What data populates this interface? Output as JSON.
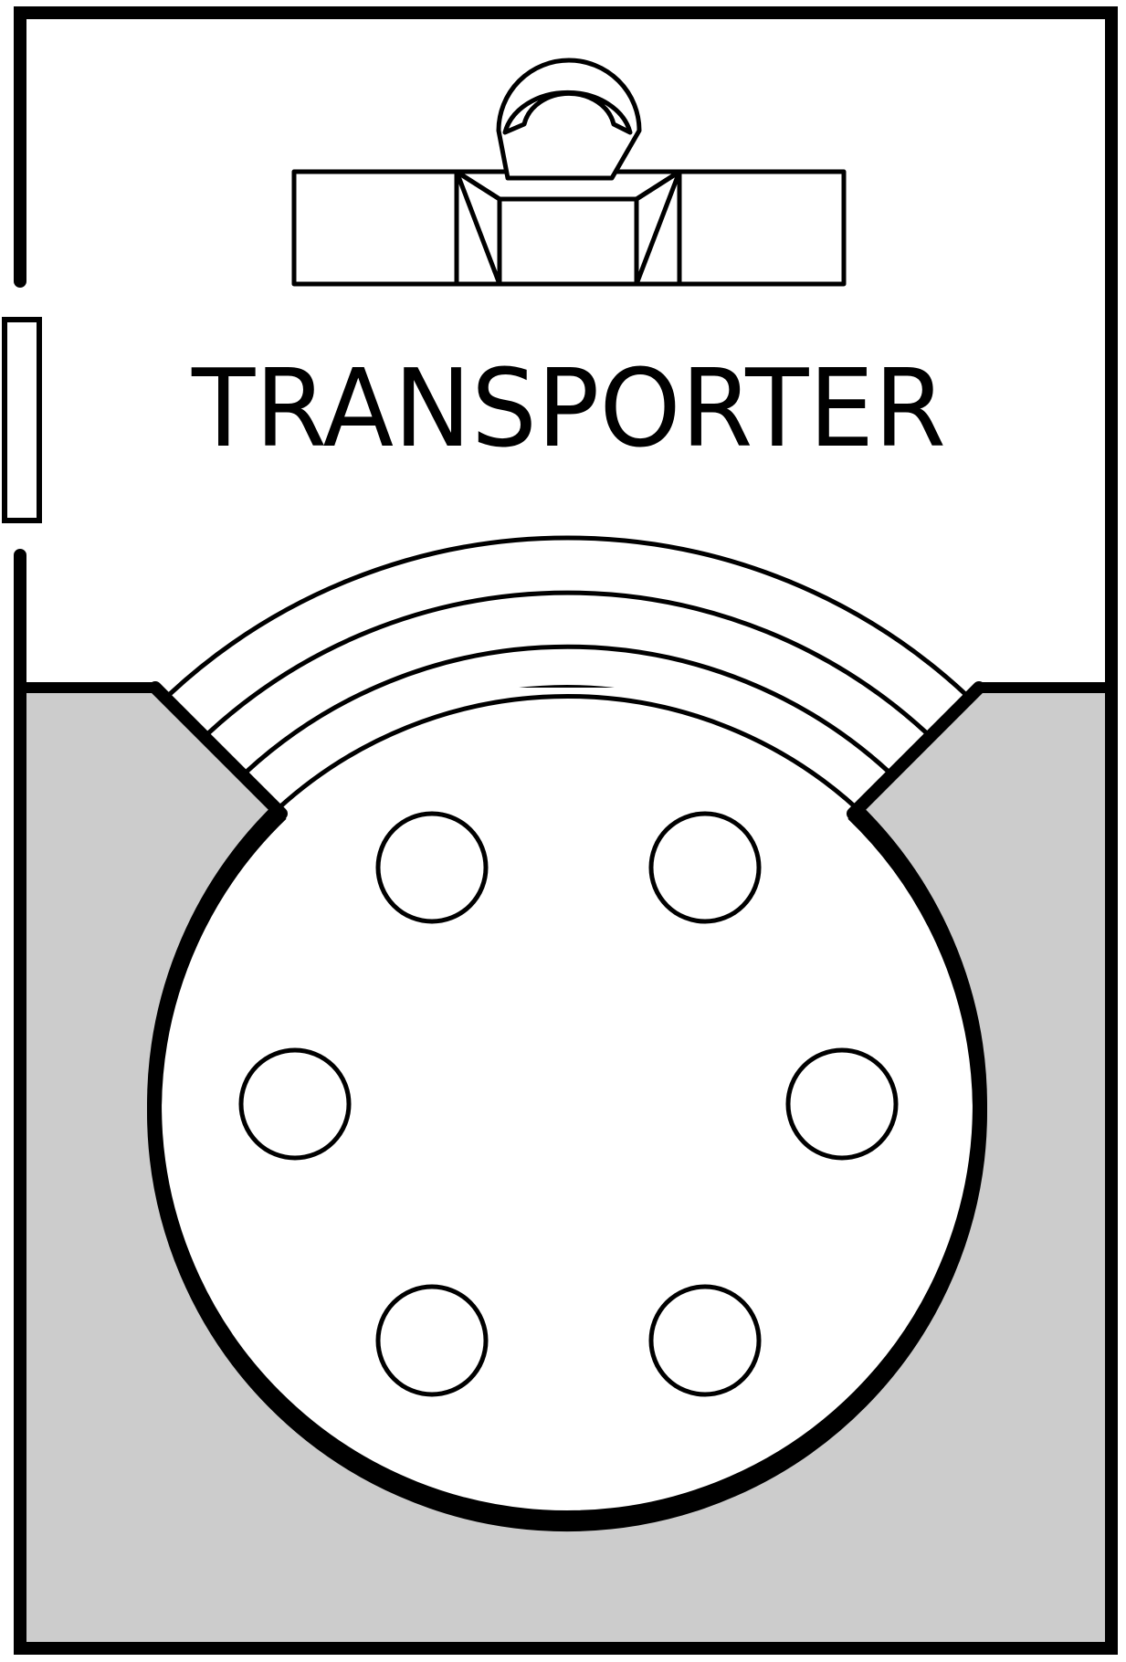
{
  "room": {
    "label": "TRANSPORTER",
    "pad_count": 6,
    "colors": {
      "wall": "#000000",
      "floor_shade": "#cccccc",
      "background": "#ffffff"
    },
    "icons": [
      "console-icon",
      "door-icon",
      "transporter-pad-icon"
    ]
  }
}
